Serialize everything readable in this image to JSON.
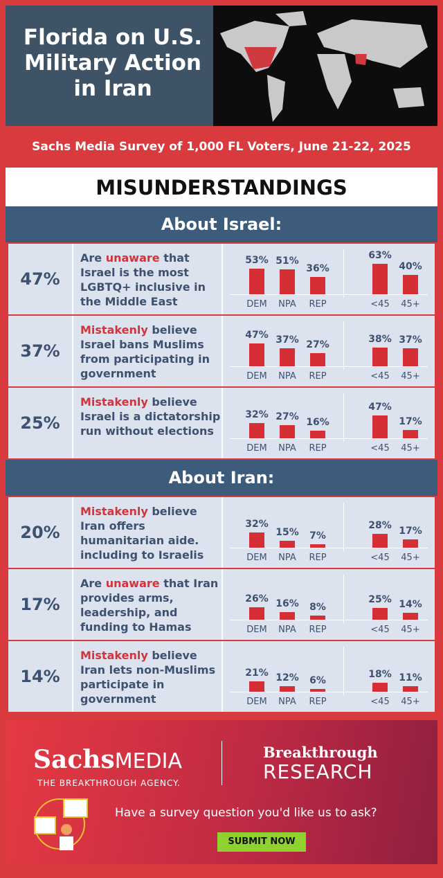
{
  "header": {
    "title": "Florida on U.S. Military Action in Iran",
    "subtitle": "Sachs Media Survey of 1,000 FL Voters, June 21-22, 2025",
    "heading": "MISUNDERSTANDINGS"
  },
  "party_labels": [
    "DEM",
    "NPA",
    "REP"
  ],
  "age_labels": [
    "<45",
    "45+"
  ],
  "sections": [
    {
      "title": "About Israel:",
      "rows": [
        {
          "total": "47%",
          "lead": "Are",
          "highlight": "unaware",
          "rest": "that Israel is the most LGBTQ+ inclusive in the Middle East",
          "party": [
            53,
            51,
            36
          ],
          "party_labels": [
            "53%",
            "51%",
            "36%"
          ],
          "age": [
            63,
            40
          ],
          "age_labels": [
            "63%",
            "40%"
          ]
        },
        {
          "total": "37%",
          "highlight": "Mistakenly",
          "rest": "believe Israel bans Muslims from participating in government",
          "party": [
            47,
            37,
            27
          ],
          "party_labels": [
            "47%",
            "37%",
            "27%"
          ],
          "age": [
            38,
            37
          ],
          "age_labels": [
            "38%",
            "37%"
          ]
        },
        {
          "total": "25%",
          "highlight": "Mistakenly",
          "rest": "believe Israel is a dictatorship run without elections",
          "party": [
            32,
            27,
            16
          ],
          "party_labels": [
            "32%",
            "27%",
            "16%"
          ],
          "age": [
            47,
            17
          ],
          "age_labels": [
            "47%",
            "17%"
          ]
        }
      ]
    },
    {
      "title": "About Iran:",
      "rows": [
        {
          "total": "20%",
          "highlight": "Mistakenly",
          "rest": "believe Iran offers humanitarian aide. including to Israelis",
          "party": [
            32,
            15,
            7
          ],
          "party_labels": [
            "32%",
            "15%",
            "7%"
          ],
          "age": [
            28,
            17
          ],
          "age_labels": [
            "28%",
            "17%"
          ]
        },
        {
          "total": "17%",
          "lead": "Are",
          "highlight": "unaware",
          "rest": "that Iran provides arms, leadership, and funding to Hamas",
          "party": [
            26,
            16,
            8
          ],
          "party_labels": [
            "26%",
            "16%",
            "8%"
          ],
          "age": [
            25,
            14
          ],
          "age_labels": [
            "25%",
            "14%"
          ]
        },
        {
          "total": "14%",
          "highlight": "Mistakenly",
          "rest": "believe Iran lets non-Muslims participate in government",
          "party": [
            21,
            12,
            6
          ],
          "party_labels": [
            "21%",
            "12%",
            "6%"
          ],
          "age": [
            18,
            11
          ],
          "age_labels": [
            "18%",
            "11%"
          ]
        }
      ]
    }
  ],
  "footer": {
    "brand_a": "Sachs",
    "brand_b": "MEDIA",
    "tagline": "THE BREAKTHROUGH AGENCY.",
    "brand2_a": "Breakthrough",
    "brand2_b": "RESEARCH",
    "question": "Have a survey question you'd like us to ask?",
    "button": "SUBMIT NOW"
  }
}
